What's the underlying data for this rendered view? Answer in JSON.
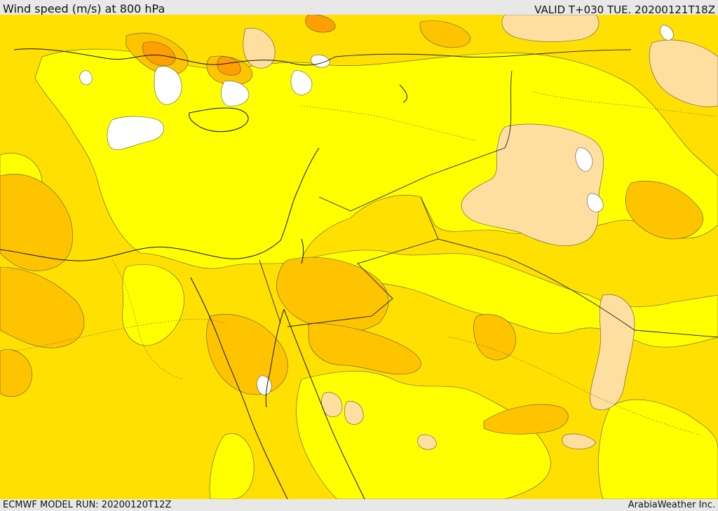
{
  "header": {
    "title": "Wind speed (m/s) at 800 hPa",
    "valid": "VALID T+030 TUE. 20200121T18Z"
  },
  "footer": {
    "model_run": "ECMWF MODEL RUN: 20200120T12Z",
    "credit": "ArabiaWeather Inc."
  },
  "map": {
    "palette": {
      "white": "#ffffff",
      "yellow": "#ffff00",
      "gold": "#ffe000",
      "orange_light": "#ffc400",
      "orange": "#ffa000",
      "peach": "#ffdfa0"
    }
  }
}
